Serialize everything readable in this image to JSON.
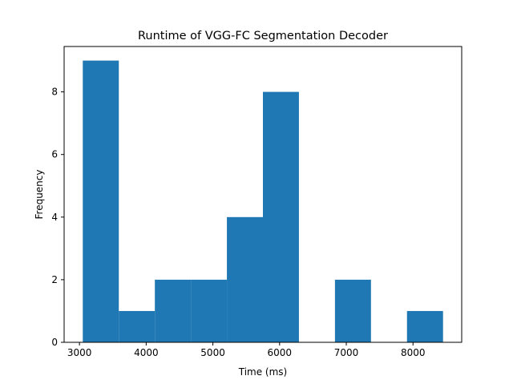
{
  "chart_data": {
    "type": "bar",
    "title": "Runtime of VGG-FC Segmentation Decoder",
    "xlabel": "Time (ms)",
    "ylabel": "Frequency",
    "bin_edges": [
      3050,
      3590,
      4130,
      4670,
      5210,
      5750,
      6290,
      6830,
      7370,
      7910,
      8450
    ],
    "values": [
      9,
      1,
      2,
      2,
      4,
      8,
      0,
      2,
      0,
      1
    ],
    "xlim": [
      2770,
      8730
    ],
    "ylim": [
      0,
      9.45
    ],
    "xticks": [
      3000,
      4000,
      5000,
      6000,
      7000,
      8000
    ],
    "yticks": [
      0,
      2,
      4,
      6,
      8
    ],
    "bar_color": "#1f77b4",
    "grid": false,
    "legend": "none"
  }
}
